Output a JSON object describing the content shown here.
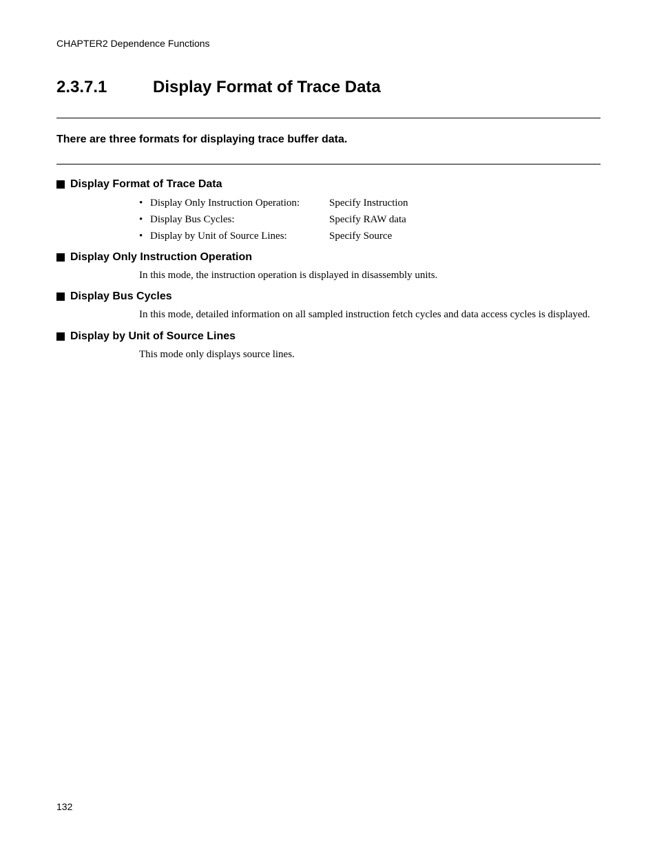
{
  "header": {
    "chapter_label": "CHAPTER2  Dependence Functions"
  },
  "title": {
    "number": "2.3.7.1",
    "text": "Display Format of Trace Data"
  },
  "intro": "There are three formats for displaying trace buffer data.",
  "sections": {
    "s1": {
      "heading": "Display Format of Trace Data",
      "bullets": [
        {
          "label": "Display Only Instruction Operation:",
          "spec": "Specify Instruction"
        },
        {
          "label": "Display Bus Cycles:",
          "spec": "Specify RAW data"
        },
        {
          "label": "Display by Unit of Source Lines:",
          "spec": "Specify Source"
        }
      ]
    },
    "s2": {
      "heading": "Display Only Instruction Operation",
      "body": "In this mode, the instruction operation is displayed in disassembly units."
    },
    "s3": {
      "heading": "Display Bus Cycles",
      "body": "In this mode, detailed information on all sampled instruction fetch cycles and data access cycles is displayed."
    },
    "s4": {
      "heading": "Display by Unit of Source Lines",
      "body": "This mode only displays source lines."
    }
  },
  "page_number": "132"
}
